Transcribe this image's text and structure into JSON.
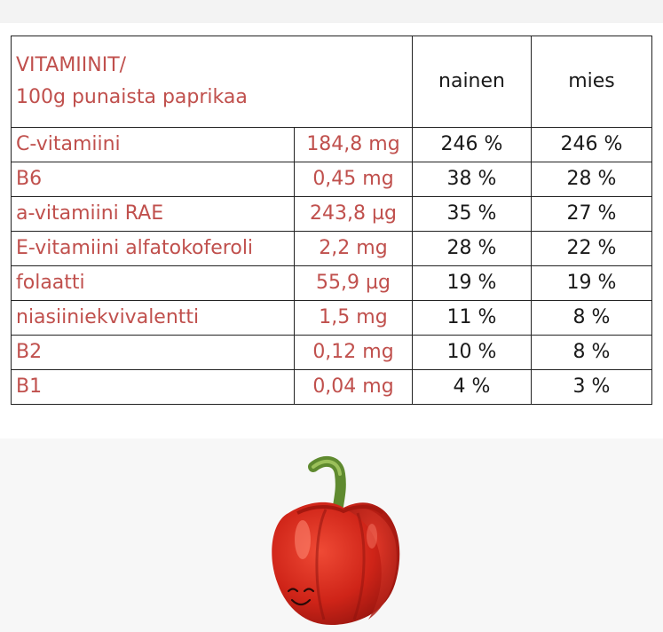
{
  "table": {
    "title_line1": "VITAMIINIT/",
    "title_line2": "100g punaista paprikaa",
    "col_female": "nainen",
    "col_male": "mies",
    "rows": [
      {
        "name": "C-vitamiini",
        "amount": "184,8 mg",
        "female": "246 %",
        "male": "246 %"
      },
      {
        "name": "B6",
        "amount": "0,45 mg",
        "female": "38 %",
        "male": "28 %"
      },
      {
        "name": "a-vitamiini RAE",
        "amount": "243,8 µg",
        "female": "35 %",
        "male": "27 %"
      },
      {
        "name": "E-vitamiini alfatokoferoli",
        "amount": "2,2 mg",
        "female": "28 %",
        "male": "22 %"
      },
      {
        "name": "folaatti",
        "amount": "55,9 µg",
        "female": "19 %",
        "male": "19 %"
      },
      {
        "name": "niasiiniekvivalentti",
        "amount": "1,5 mg",
        "female": "11 %",
        "male": "8 %"
      },
      {
        "name": "B2",
        "amount": "0,12 mg",
        "female": "10 %",
        "male": "8 %"
      },
      {
        "name": "B1",
        "amount": "0,04 mg",
        "female": "4 %",
        "male": "3 %"
      }
    ]
  },
  "illustration": {
    "icon": "smiling-red-bell-pepper-icon",
    "colors": {
      "pepper_red": "#d42a1f",
      "pepper_dark": "#8f1410",
      "stem_green": "#6e9a3a"
    }
  },
  "colors": {
    "accent_red_text": "#c0504d",
    "border": "#222222"
  }
}
